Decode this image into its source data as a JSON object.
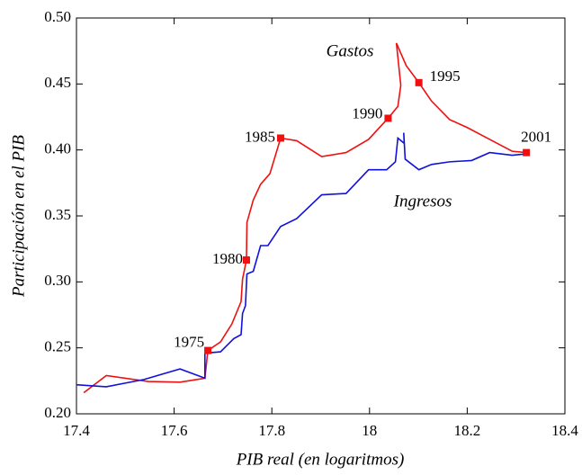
{
  "chart_data": {
    "type": "line",
    "xlabel": "PIB real (en logaritmos)",
    "ylabel": "Participación en el PIB",
    "xlim": [
      17.4,
      18.4
    ],
    "xticks": [
      17.4,
      17.6,
      17.8,
      18,
      18.2,
      18.4
    ],
    "ylim": [
      0.2,
      0.5
    ],
    "yticks": [
      {
        "value": 0.2,
        "label": "0.20"
      },
      {
        "value": 0.25,
        "label": "0.25"
      },
      {
        "value": 0.3,
        "label": "0.30"
      },
      {
        "value": 0.35,
        "label": "0.35"
      },
      {
        "value": 0.4,
        "label": "0.40"
      },
      {
        "value": 0.45,
        "label": "0.45"
      },
      {
        "value": 0.5,
        "label": "0.50"
      }
    ],
    "series": [
      {
        "name": "Gastos",
        "color": "#ee1111",
        "x": [
          17.415,
          17.461,
          17.547,
          17.612,
          17.663,
          17.669,
          17.695,
          17.718,
          17.737,
          17.74,
          17.748,
          17.749,
          17.762,
          17.777,
          17.796,
          17.818,
          17.851,
          17.902,
          17.952,
          17.998,
          18.038,
          18.058,
          18.064,
          18.055,
          18.075,
          18.101,
          18.127,
          18.164,
          18.2,
          18.246,
          18.292,
          18.321
        ],
        "values": [
          0.216,
          0.229,
          0.2245,
          0.224,
          0.227,
          0.248,
          0.2545,
          0.268,
          0.285,
          0.302,
          0.3166,
          0.345,
          0.362,
          0.374,
          0.382,
          0.409,
          0.407,
          0.395,
          0.398,
          0.408,
          0.424,
          0.433,
          0.449,
          0.481,
          0.464,
          0.451,
          0.437,
          0.423,
          0.417,
          0.408,
          0.399,
          0.398
        ]
      },
      {
        "name": "Ingresos",
        "color": "#1111dd",
        "x": [
          17.4,
          17.461,
          17.538,
          17.612,
          17.663,
          17.663,
          17.695,
          17.722,
          17.737,
          17.74,
          17.746,
          17.749,
          17.762,
          17.777,
          17.792,
          17.818,
          17.851,
          17.902,
          17.952,
          17.998,
          18.035,
          18.053,
          18.058,
          18.071,
          18.07,
          18.073,
          18.101,
          18.127,
          18.164,
          18.209,
          18.246,
          18.292,
          18.321
        ],
        "values": [
          0.222,
          0.2205,
          0.226,
          0.234,
          0.227,
          0.246,
          0.247,
          0.257,
          0.26,
          0.276,
          0.282,
          0.306,
          0.308,
          0.3275,
          0.3275,
          0.342,
          0.348,
          0.366,
          0.367,
          0.385,
          0.385,
          0.391,
          0.409,
          0.405,
          0.413,
          0.393,
          0.385,
          0.389,
          0.391,
          0.392,
          0.398,
          0.396,
          0.397
        ]
      }
    ],
    "points": [
      {
        "x": 17.669,
        "y": 0.248,
        "label": "1975"
      },
      {
        "x": 17.748,
        "y": 0.3166,
        "label": "1980"
      },
      {
        "x": 17.818,
        "y": 0.409,
        "label": "1985"
      },
      {
        "x": 18.038,
        "y": 0.424,
        "label": "1990"
      },
      {
        "x": 18.101,
        "y": 0.451,
        "label": "1995"
      },
      {
        "x": 18.321,
        "y": 0.398,
        "label": "2001"
      }
    ],
    "marker_color": "#ee1111"
  }
}
